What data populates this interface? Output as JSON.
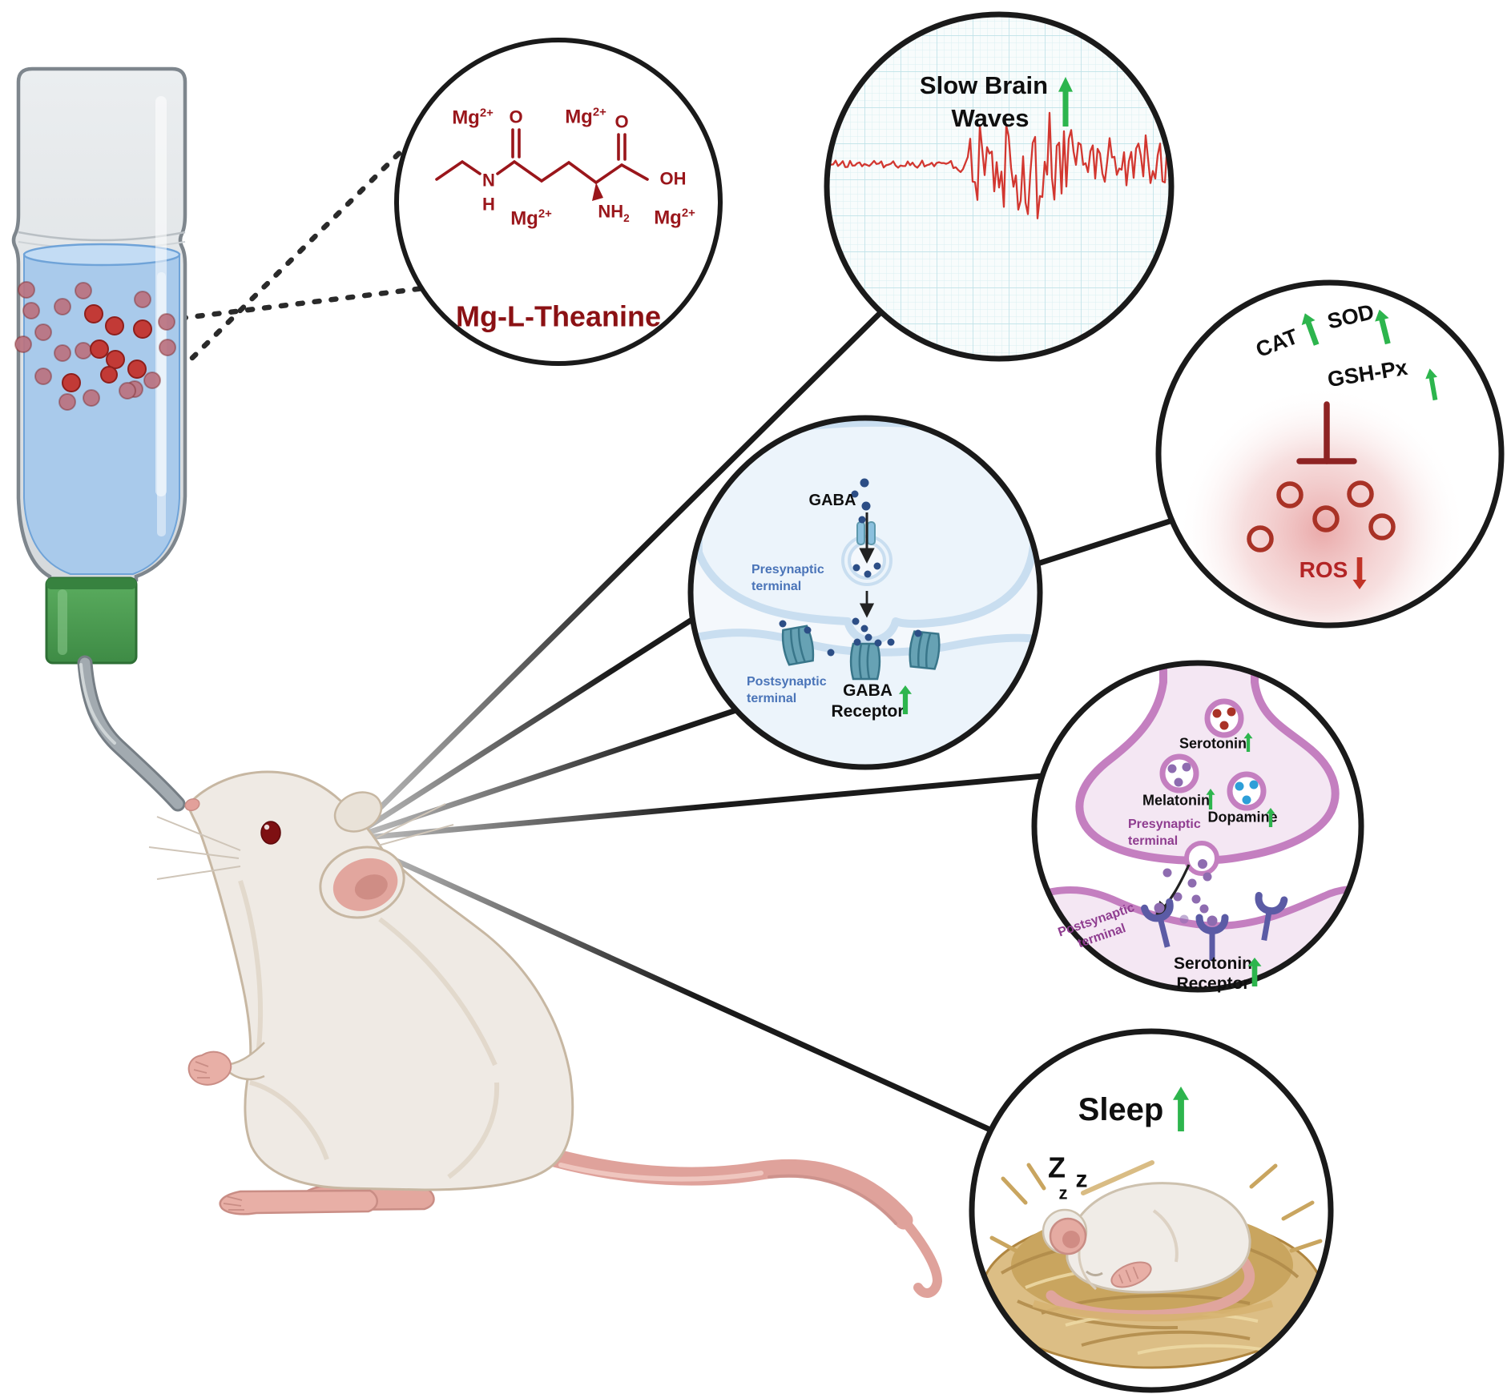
{
  "colors": {
    "structure_red": "#9A161B",
    "title_red": "#8B1114",
    "arrow_green": "#2DB54D",
    "eeg_red": "#D23730",
    "ros_red": "#B32425",
    "blue_label": "#4A74B8",
    "purple_label": "#8F3D90",
    "membrane_pink": "#C47FC0",
    "membrane_blue": "#C9DEF0",
    "receptor_teal": "#67A2B4",
    "receptor_indigo": "#5B5BA5",
    "dot_dark_blue": "#2C4E86",
    "dot_purple": "#8E6CB0",
    "dot_dopamine_blue": "#2D9FD8",
    "water_blue": "#A9CAEB",
    "cap_green": "#4FA254"
  },
  "chemical": {
    "mg": "Mg",
    "mg_charge": "2+",
    "o": "O",
    "n": "N",
    "h": "H",
    "nh": "NH",
    "nh_sub": "2",
    "oh": "OH",
    "title": "Mg-L-Theanine"
  },
  "brain": {
    "line1": "Slow Brain",
    "line2": "Waves"
  },
  "antioxidants": {
    "cat": "CAT",
    "sod": "SOD",
    "gsh": "GSH-Px",
    "ros": "ROS"
  },
  "gaba": {
    "neurotransmitter": "GABA",
    "presynaptic": "Presynaptic terminal",
    "postsynaptic": "Postsynaptic terminal",
    "receptor": "GABA Receptor"
  },
  "serotonin": {
    "serotonin": "Serotonin",
    "melatonin": "Melatonin",
    "dopamine": "Dopamine",
    "presynaptic": "Presynaptic terminal",
    "postsynaptic": "Postsynaptic terminal",
    "receptor": "Serotonin Receptor"
  },
  "sleep": {
    "title": "Sleep",
    "z_large": "Z",
    "z_mid": "z",
    "z_small": "z"
  }
}
